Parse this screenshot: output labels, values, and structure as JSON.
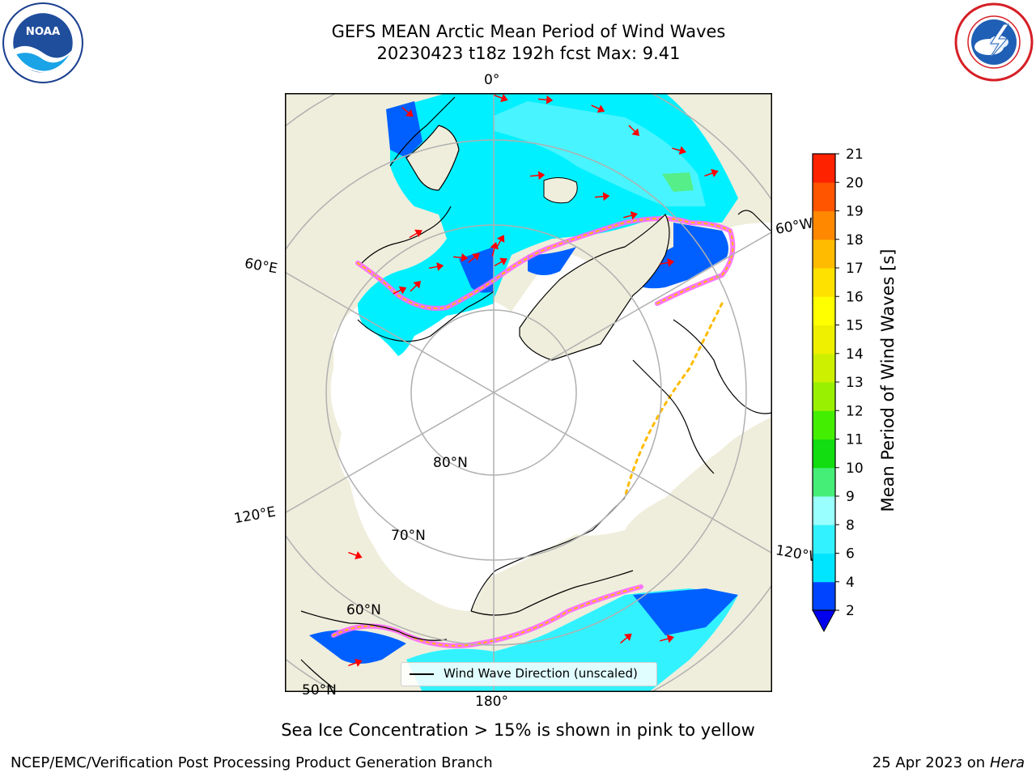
{
  "header": {
    "title_line1": "GEFS MEAN Arctic Mean Period of Wind Waves",
    "title_line2": "20230423 t18z 192h fcst   Max: 9.41"
  },
  "logos": {
    "left": "noaa-logo",
    "left_text": "NOAA",
    "right": "nws-logo"
  },
  "map": {
    "projection": "north polar stereographic",
    "land_color": "#efeedc",
    "ocean_mask_color": "#ffffff",
    "gridline_color": "#b0b0b0",
    "gridline_labels": {
      "lon_0": "0°",
      "lon_60E": "60°E",
      "lon_60W": "60°W",
      "lon_120E": "120°E",
      "lon_120W": "120°W",
      "lon_180": "180°",
      "lat_80": "80°N",
      "lat_70": "70°N",
      "lat_60": "60°N",
      "lat_50": "50°N"
    },
    "legend": {
      "label": "Wind Wave Direction (unscaled)"
    },
    "arrow_color": "#ff0000"
  },
  "colorbar": {
    "label": "Mean Period of Wind Waves [s]",
    "ticks": [
      "2",
      "4",
      "6",
      "8",
      "9",
      "10",
      "11",
      "12",
      "13",
      "14",
      "15",
      "16",
      "17",
      "18",
      "19",
      "20",
      "21"
    ],
    "colors": [
      "#0044ff",
      "#00e5ff",
      "#33f2ff",
      "#99ffff",
      "#44ee77",
      "#11dd11",
      "#44ee00",
      "#99f000",
      "#ccf000",
      "#eef000",
      "#ffff00",
      "#ffe100",
      "#ffbb00",
      "#ff8800",
      "#ff5500",
      "#ff2200"
    ],
    "extend_min_color": "#0000ee"
  },
  "footnote": "Sea Ice Concentration > 15% is shown in pink to yellow",
  "footer": {
    "left": "NCEP/EMC/Verification Post Processing Product Generation Branch",
    "right_prefix": "25 Apr 2023 on ",
    "right_machine": "Hera"
  }
}
